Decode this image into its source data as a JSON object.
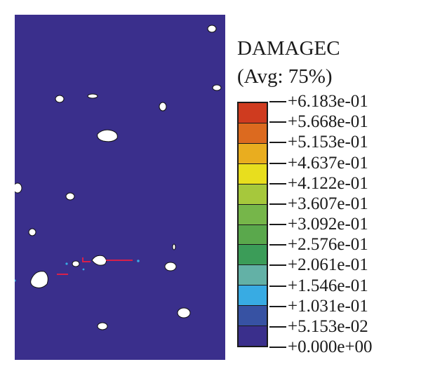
{
  "legend": {
    "title": "DAMAGEC",
    "subtitle": "(Avg: 75%)",
    "values": [
      "+6.183e-01",
      "+5.668e-01",
      "+5.153e-01",
      "+4.637e-01",
      "+4.122e-01",
      "+3.607e-01",
      "+3.092e-01",
      "+2.576e-01",
      "+2.061e-01",
      "+1.546e-01",
      "+1.031e-01",
      "+5.153e-02",
      "+0.000e+00"
    ],
    "colors": [
      "#cf3b1f",
      "#dc6a1f",
      "#e9ad1f",
      "#e8de1e",
      "#a6c83c",
      "#76b64a",
      "#5aa84c",
      "#3b9c58",
      "#63b1a6",
      "#38abe3",
      "#3752a3",
      "#3a2f8c"
    ]
  },
  "plot": {
    "background_color": "#3a2f8c",
    "inclusion_color": "#ffffff",
    "crack_color": "#d8204a"
  }
}
